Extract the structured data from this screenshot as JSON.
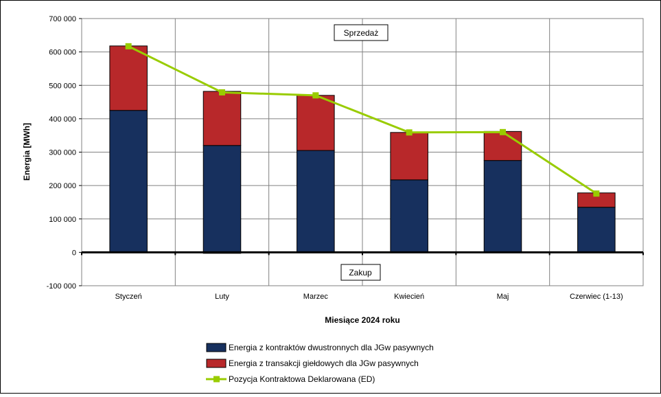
{
  "chart_data": {
    "type": "bar",
    "stacked": true,
    "categories": [
      "Styczeń",
      "Luty",
      "Marzec",
      "Kwiecień",
      "Maj",
      "Czerwiec (1-13)"
    ],
    "series": [
      {
        "name": "Energia z kontraktów dwustronnych dla JGw pasywnych",
        "kind": "bar",
        "color": "#17305e",
        "values": [
          425000,
          320000,
          305000,
          217000,
          275000,
          135000
        ]
      },
      {
        "name": "Energia z transakcji giełdowych dla JGw pasywnych",
        "kind": "bar",
        "color": "#b8282a",
        "values": [
          193000,
          162000,
          165000,
          142000,
          87000,
          43000
        ]
      },
      {
        "name": "Pozycja Kontraktowa Deklarowana (ED)",
        "kind": "line",
        "color": "#99cc00",
        "values": [
          617000,
          479000,
          470000,
          359000,
          360000,
          176000
        ]
      }
    ],
    "negative_values": [
      0,
      -3000,
      0,
      0,
      0,
      0
    ],
    "ylabel": "Energia [MWh]",
    "xlabel": "Miesiące 2024  roku",
    "ylim": [
      -100000,
      700000
    ],
    "y_ticks": [
      700000,
      600000,
      500000,
      400000,
      300000,
      200000,
      100000,
      0,
      -100000
    ],
    "y_tick_labels": [
      "700 000",
      "600 000",
      "500 000",
      "400 000",
      "300 000",
      "200 000",
      "100 000",
      "0",
      "-100 000"
    ],
    "grid": true,
    "legend_position": "bottom",
    "annotations": {
      "top": "Sprzedaż",
      "bottom": "Zakup"
    }
  }
}
